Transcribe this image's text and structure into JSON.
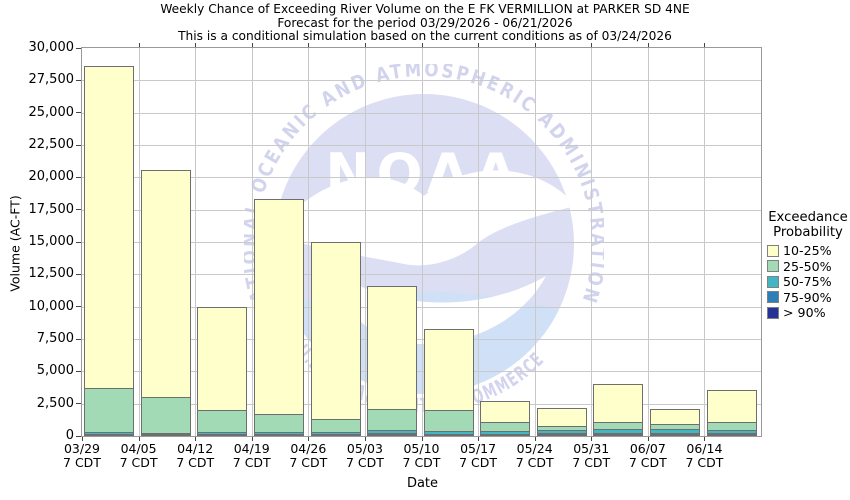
{
  "title": {
    "line1": "Weekly Chance of Exceeding River Volume on the E FK VERMILLION at PARKER SD 4NE",
    "line2": "Forecast for the period 03/29/2026 - 06/21/2026",
    "line3": "This is a conditional simulation based on the current conditions as of 03/24/2026"
  },
  "y_axis": {
    "label": "Volume (AC-FT)",
    "min": 0,
    "max": 30000,
    "step": 2500,
    "tick_labels": [
      "0",
      "2,500",
      "5,000",
      "7,500",
      "10,000",
      "12,500",
      "15,000",
      "17,500",
      "20,000",
      "22,500",
      "25,000",
      "27,500",
      "30,000"
    ]
  },
  "x_axis": {
    "label": "Date",
    "tick_sub_label": "7 CDT",
    "tick_labels": [
      "03/29",
      "04/05",
      "04/12",
      "04/19",
      "04/26",
      "05/03",
      "05/10",
      "05/17",
      "05/24",
      "05/31",
      "06/07",
      "06/14"
    ]
  },
  "legend": {
    "title_lines": [
      "Exceedance",
      "Probability"
    ],
    "entries": [
      {
        "label": "10-25%",
        "color": "#ffffcc"
      },
      {
        "label": "25-50%",
        "color": "#a1dab4"
      },
      {
        "label": "50-75%",
        "color": "#41b6c4"
      },
      {
        "label": "75-90%",
        "color": "#2c7fb8"
      },
      {
        "label": "> 90%",
        "color": "#253494"
      }
    ]
  },
  "watermark": {
    "arc_top_text": "NATIONAL OCEANIC AND ATMOSPHERIC ADMINISTRATION",
    "arc_bottom_text": "U.S. DEPARTMENT OF COMMERCE",
    "logo_text": "NOAA",
    "circle_color": "#dcdef4",
    "arc_text_color": "#d2d4ee",
    "sea_color": "#cfe0f7"
  },
  "chart_data": {
    "type": "bar",
    "stacked": true,
    "title": "Weekly Chance of Exceeding River Volume on the E FK VERMILLION at PARKER SD 4NE",
    "subtitle": "Forecast for the period 03/29/2026 - 06/21/2026",
    "note": "This is a conditional simulation based on the current conditions as of 03/24/2026",
    "xlabel": "Date",
    "ylabel": "Volume (AC-FT)",
    "ylim": [
      0,
      30000
    ],
    "grid": true,
    "legend_position": "right",
    "categories": [
      "03/29",
      "04/05",
      "04/12",
      "04/19",
      "04/26",
      "05/03",
      "05/10",
      "05/17",
      "05/24",
      "05/31",
      "06/07",
      "06/14"
    ],
    "category_time": "7 CDT",
    "values_are": "cumulative exceedance-volume thresholds in AC-FT; each bar is drawn tallest series first",
    "series": [
      {
        "name": "10-25%",
        "color": "#ffffcc",
        "cumulative_volume_acft": [
          28600,
          20600,
          10000,
          18300,
          15000,
          11600,
          8300,
          2700,
          2200,
          4000,
          2100,
          3550
        ]
      },
      {
        "name": "25-50%",
        "color": "#a1dab4",
        "cumulative_volume_acft": [
          3700,
          3000,
          2050,
          1700,
          1300,
          2100,
          2000,
          1100,
          750,
          1100,
          900,
          1100
        ]
      },
      {
        "name": "50-75%",
        "color": "#41b6c4",
        "cumulative_volume_acft": [
          280,
          210,
          280,
          330,
          330,
          460,
          410,
          360,
          440,
          540,
          515,
          485
        ]
      },
      {
        "name": "75-90%",
        "color": "#2c7fb8",
        "cumulative_volume_acft": [
          130,
          100,
          130,
          150,
          150,
          200,
          190,
          170,
          210,
          250,
          240,
          230
        ]
      },
      {
        "name": "> 90%",
        "color": "#253494",
        "cumulative_volume_acft": [
          70,
          50,
          60,
          70,
          70,
          90,
          90,
          80,
          100,
          120,
          110,
          110
        ]
      }
    ]
  }
}
